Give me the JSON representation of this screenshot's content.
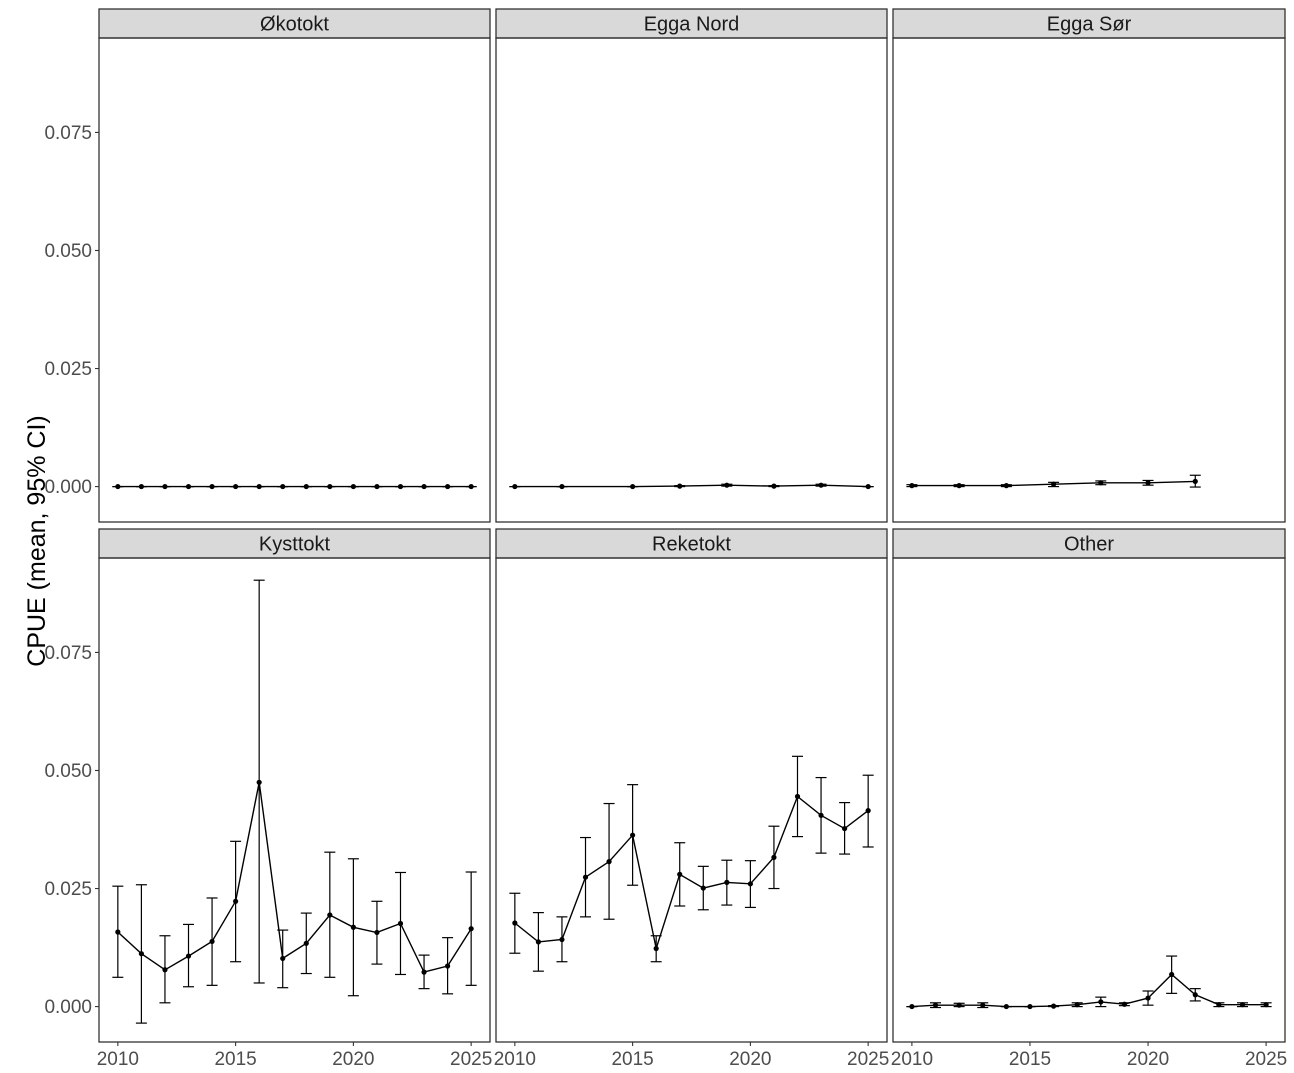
{
  "chart_data": {
    "type": "line",
    "ylabel": "CPUE (mean, 95% CI)",
    "xlabel": "",
    "xlim": [
      2009.2,
      2025.8
    ],
    "ylim": [
      -0.0075,
      0.095
    ],
    "x_ticks": [
      "2010",
      "2015",
      "2020",
      "2025"
    ],
    "y_ticks": [
      "0.000",
      "0.025",
      "0.050",
      "0.075"
    ],
    "grid": false,
    "layout": "2 rows x 3 columns, shared axes",
    "panels": [
      {
        "title": "Økotokt",
        "points": [
          {
            "year": 2010,
            "mean": 0.0,
            "lo": 0.0,
            "hi": 0.0
          },
          {
            "year": 2011,
            "mean": 0.0,
            "lo": 0.0,
            "hi": 0.0
          },
          {
            "year": 2012,
            "mean": 0.0,
            "lo": 0.0,
            "hi": 0.0
          },
          {
            "year": 2013,
            "mean": 0.0,
            "lo": 0.0,
            "hi": 0.0
          },
          {
            "year": 2014,
            "mean": 0.0,
            "lo": 0.0,
            "hi": 0.0
          },
          {
            "year": 2015,
            "mean": 0.0,
            "lo": 0.0,
            "hi": 0.0
          },
          {
            "year": 2016,
            "mean": 0.0,
            "lo": 0.0,
            "hi": 0.0
          },
          {
            "year": 2017,
            "mean": 0.0,
            "lo": 0.0,
            "hi": 0.0
          },
          {
            "year": 2018,
            "mean": 0.0,
            "lo": 0.0,
            "hi": 0.0
          },
          {
            "year": 2019,
            "mean": 0.0,
            "lo": 0.0,
            "hi": 0.0
          },
          {
            "year": 2020,
            "mean": 0.0,
            "lo": 0.0,
            "hi": 0.0
          },
          {
            "year": 2021,
            "mean": 0.0,
            "lo": 0.0,
            "hi": 0.0
          },
          {
            "year": 2022,
            "mean": 0.0,
            "lo": 0.0,
            "hi": 0.0
          },
          {
            "year": 2023,
            "mean": 0.0,
            "lo": 0.0,
            "hi": 0.0
          },
          {
            "year": 2024,
            "mean": 0.0,
            "lo": 0.0,
            "hi": 0.0
          },
          {
            "year": 2025,
            "mean": 0.0,
            "lo": 0.0,
            "hi": 0.0
          }
        ]
      },
      {
        "title": "Egga Nord",
        "points": [
          {
            "year": 2010,
            "mean": 0.0,
            "lo": 0.0,
            "hi": 0.0
          },
          {
            "year": 2012,
            "mean": 0.0,
            "lo": 0.0,
            "hi": 0.0
          },
          {
            "year": 2015,
            "mean": 0.0,
            "lo": 0.0,
            "hi": 0.0
          },
          {
            "year": 2017,
            "mean": 0.0001,
            "lo": 0.0,
            "hi": 0.0002
          },
          {
            "year": 2019,
            "mean": 0.0003,
            "lo": 0.0001,
            "hi": 0.0005
          },
          {
            "year": 2021,
            "mean": 0.0001,
            "lo": 0.0,
            "hi": 0.0002
          },
          {
            "year": 2023,
            "mean": 0.0003,
            "lo": 0.0001,
            "hi": 0.0005
          },
          {
            "year": 2025,
            "mean": 0.0,
            "lo": 0.0,
            "hi": 0.0
          }
        ]
      },
      {
        "title": "Egga Sør",
        "points": [
          {
            "year": 2010,
            "mean": 0.0002,
            "lo": 0.0,
            "hi": 0.0004
          },
          {
            "year": 2012,
            "mean": 0.0002,
            "lo": 0.0,
            "hi": 0.0004
          },
          {
            "year": 2014,
            "mean": 0.0002,
            "lo": 0.0,
            "hi": 0.0004
          },
          {
            "year": 2016,
            "mean": 0.0005,
            "lo": 0.0,
            "hi": 0.0009
          },
          {
            "year": 2018,
            "mean": 0.0008,
            "lo": 0.0004,
            "hi": 0.0012
          },
          {
            "year": 2020,
            "mean": 0.0008,
            "lo": 0.0003,
            "hi": 0.0013
          },
          {
            "year": 2022,
            "mean": 0.0011,
            "lo": -0.0001,
            "hi": 0.0024
          }
        ]
      },
      {
        "title": "Kysttokt",
        "points": [
          {
            "year": 2010,
            "mean": 0.0158,
            "lo": 0.0062,
            "hi": 0.0255
          },
          {
            "year": 2011,
            "mean": 0.0112,
            "lo": -0.0035,
            "hi": 0.0258
          },
          {
            "year": 2012,
            "mean": 0.0078,
            "lo": 0.0008,
            "hi": 0.015
          },
          {
            "year": 2013,
            "mean": 0.0107,
            "lo": 0.0042,
            "hi": 0.0174
          },
          {
            "year": 2014,
            "mean": 0.0138,
            "lo": 0.0045,
            "hi": 0.023
          },
          {
            "year": 2015,
            "mean": 0.0223,
            "lo": 0.0095,
            "hi": 0.035
          },
          {
            "year": 2016,
            "mean": 0.0475,
            "lo": 0.005,
            "hi": 0.0903
          },
          {
            "year": 2017,
            "mean": 0.0102,
            "lo": 0.004,
            "hi": 0.0162
          },
          {
            "year": 2018,
            "mean": 0.0134,
            "lo": 0.007,
            "hi": 0.0198
          },
          {
            "year": 2019,
            "mean": 0.0194,
            "lo": 0.0062,
            "hi": 0.0327
          },
          {
            "year": 2020,
            "mean": 0.0168,
            "lo": 0.0023,
            "hi": 0.0313
          },
          {
            "year": 2021,
            "mean": 0.0157,
            "lo": 0.009,
            "hi": 0.0223
          },
          {
            "year": 2022,
            "mean": 0.0176,
            "lo": 0.0068,
            "hi": 0.0284
          },
          {
            "year": 2023,
            "mean": 0.0073,
            "lo": 0.0038,
            "hi": 0.0109
          },
          {
            "year": 2024,
            "mean": 0.0086,
            "lo": 0.0027,
            "hi": 0.0146
          },
          {
            "year": 2025,
            "mean": 0.0165,
            "lo": 0.0045,
            "hi": 0.0285
          }
        ]
      },
      {
        "title": "Reketokt",
        "points": [
          {
            "year": 2010,
            "mean": 0.0177,
            "lo": 0.0113,
            "hi": 0.024
          },
          {
            "year": 2011,
            "mean": 0.0137,
            "lo": 0.0075,
            "hi": 0.0199
          },
          {
            "year": 2012,
            "mean": 0.0142,
            "lo": 0.0095,
            "hi": 0.019
          },
          {
            "year": 2013,
            "mean": 0.0274,
            "lo": 0.019,
            "hi": 0.0358
          },
          {
            "year": 2014,
            "mean": 0.0307,
            "lo": 0.0185,
            "hi": 0.043
          },
          {
            "year": 2015,
            "mean": 0.0363,
            "lo": 0.0257,
            "hi": 0.047
          },
          {
            "year": 2016,
            "mean": 0.0123,
            "lo": 0.0095,
            "hi": 0.015
          },
          {
            "year": 2017,
            "mean": 0.028,
            "lo": 0.0213,
            "hi": 0.0347
          },
          {
            "year": 2018,
            "mean": 0.0251,
            "lo": 0.0205,
            "hi": 0.0297
          },
          {
            "year": 2019,
            "mean": 0.0263,
            "lo": 0.0215,
            "hi": 0.031
          },
          {
            "year": 2020,
            "mean": 0.026,
            "lo": 0.021,
            "hi": 0.0309
          },
          {
            "year": 2021,
            "mean": 0.0316,
            "lo": 0.025,
            "hi": 0.0382
          },
          {
            "year": 2022,
            "mean": 0.0445,
            "lo": 0.036,
            "hi": 0.053
          },
          {
            "year": 2023,
            "mean": 0.0405,
            "lo": 0.0325,
            "hi": 0.0485
          },
          {
            "year": 2024,
            "mean": 0.0377,
            "lo": 0.0323,
            "hi": 0.0432
          },
          {
            "year": 2025,
            "mean": 0.0415,
            "lo": 0.0338,
            "hi": 0.049
          }
        ]
      },
      {
        "title": "Other",
        "points": [
          {
            "year": 2010,
            "mean": 0.0,
            "lo": 0.0,
            "hi": 0.0
          },
          {
            "year": 2011,
            "mean": 0.0003,
            "lo": -0.0002,
            "hi": 0.0008
          },
          {
            "year": 2012,
            "mean": 0.0003,
            "lo": 0.0,
            "hi": 0.0007
          },
          {
            "year": 2013,
            "mean": 0.0003,
            "lo": -0.0002,
            "hi": 0.0008
          },
          {
            "year": 2014,
            "mean": 0.0,
            "lo": 0.0,
            "hi": 0.0
          },
          {
            "year": 2015,
            "mean": 0.0,
            "lo": 0.0,
            "hi": 0.0
          },
          {
            "year": 2016,
            "mean": 0.0001,
            "lo": 0.0,
            "hi": 0.0002
          },
          {
            "year": 2017,
            "mean": 0.0004,
            "lo": 0.0,
            "hi": 0.0008
          },
          {
            "year": 2018,
            "mean": 0.001,
            "lo": 0.0,
            "hi": 0.002
          },
          {
            "year": 2019,
            "mean": 0.0005,
            "lo": 0.0002,
            "hi": 0.0008
          },
          {
            "year": 2020,
            "mean": 0.0018,
            "lo": 0.0003,
            "hi": 0.0033
          },
          {
            "year": 2021,
            "mean": 0.0068,
            "lo": 0.0028,
            "hi": 0.0107
          },
          {
            "year": 2022,
            "mean": 0.0025,
            "lo": 0.0012,
            "hi": 0.0038
          },
          {
            "year": 2023,
            "mean": 0.0004,
            "lo": 0.0,
            "hi": 0.0008
          },
          {
            "year": 2024,
            "mean": 0.0004,
            "lo": 0.0,
            "hi": 0.0008
          },
          {
            "year": 2025,
            "mean": 0.0004,
            "lo": 0.0,
            "hi": 0.0008
          }
        ]
      }
    ]
  }
}
